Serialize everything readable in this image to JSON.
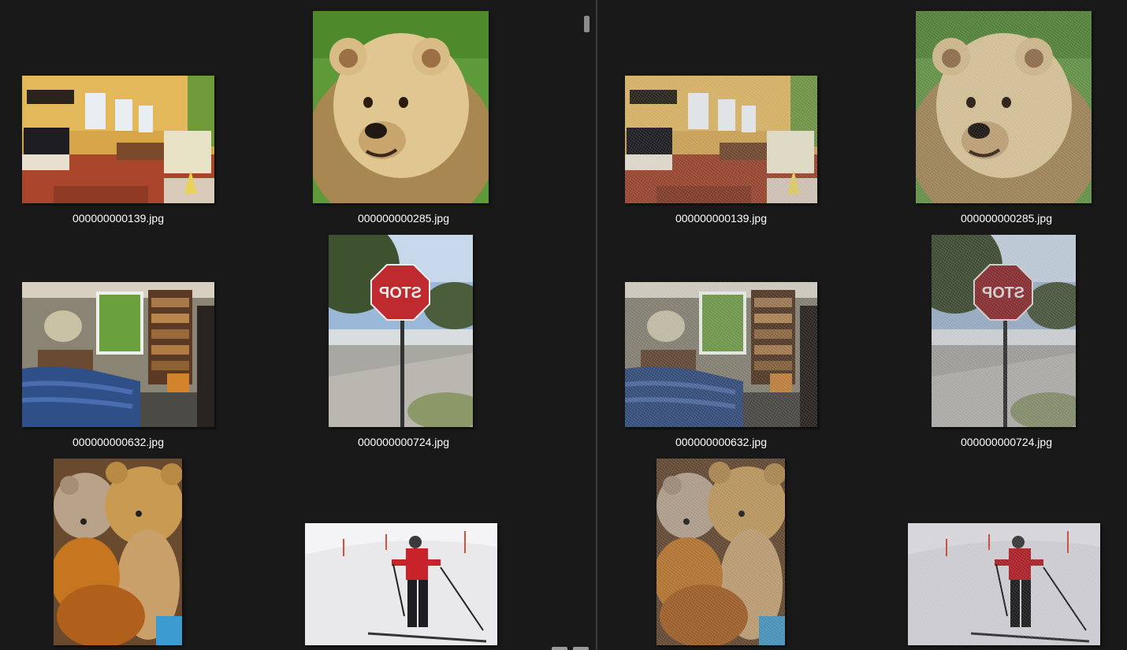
{
  "left_pane": {
    "files": [
      {
        "name": "000000000139.jpg",
        "image": "living-room"
      },
      {
        "name": "000000000285.jpg",
        "image": "bear"
      },
      {
        "name": "000000000632.jpg",
        "image": "bedroom"
      },
      {
        "name": "000000000724.jpg",
        "image": "stop-sign"
      },
      {
        "name": "",
        "image": "teddy-bears"
      },
      {
        "name": "",
        "image": "skier"
      }
    ]
  },
  "right_pane": {
    "files": [
      {
        "name": "000000000139.jpg",
        "image": "living-room-noisy"
      },
      {
        "name": "000000000285.jpg",
        "image": "bear-noisy"
      },
      {
        "name": "000000000632.jpg",
        "image": "bedroom-noisy"
      },
      {
        "name": "000000000724.jpg",
        "image": "stop-sign-noisy"
      },
      {
        "name": "",
        "image": "teddy-bears-noisy"
      },
      {
        "name": "",
        "image": "skier-noisy"
      }
    ]
  },
  "colors": {
    "background": "#191919",
    "label_text": "#ffffff",
    "divider": "#3a3a3a"
  }
}
